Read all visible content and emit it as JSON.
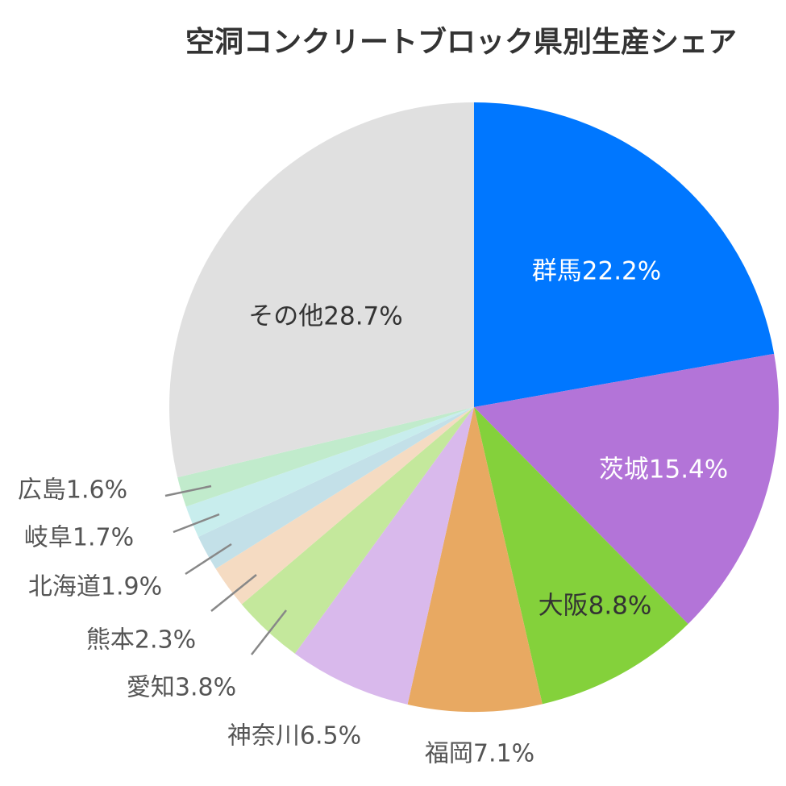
{
  "chart_data": {
    "type": "pie",
    "title": "空洞コンクリートブロック県別生産シェア",
    "unit": "%",
    "slices": [
      {
        "label": "群馬",
        "value": 22.2,
        "color": "#0077ff"
      },
      {
        "label": "茨城",
        "value": 15.4,
        "color": "#b374d8"
      },
      {
        "label": "大阪",
        "value": 8.8,
        "color": "#84d13b"
      },
      {
        "label": "福岡",
        "value": 7.1,
        "color": "#e8a962"
      },
      {
        "label": "神奈川",
        "value": 6.5,
        "color": "#d9b9ec"
      },
      {
        "label": "愛知",
        "value": 3.8,
        "color": "#c4e89c"
      },
      {
        "label": "熊本",
        "value": 2.3,
        "color": "#f5dbc2"
      },
      {
        "label": "北海道",
        "value": 1.9,
        "color": "#c3e0e8"
      },
      {
        "label": "岐阜",
        "value": 1.7,
        "color": "#c8eded"
      },
      {
        "label": "広島",
        "value": 1.6,
        "color": "#c1ebcc"
      },
      {
        "label": "その他",
        "value": 28.7,
        "color": "#e0e0e0"
      }
    ],
    "start_angle": "12 o'clock",
    "direction": "clockwise"
  }
}
